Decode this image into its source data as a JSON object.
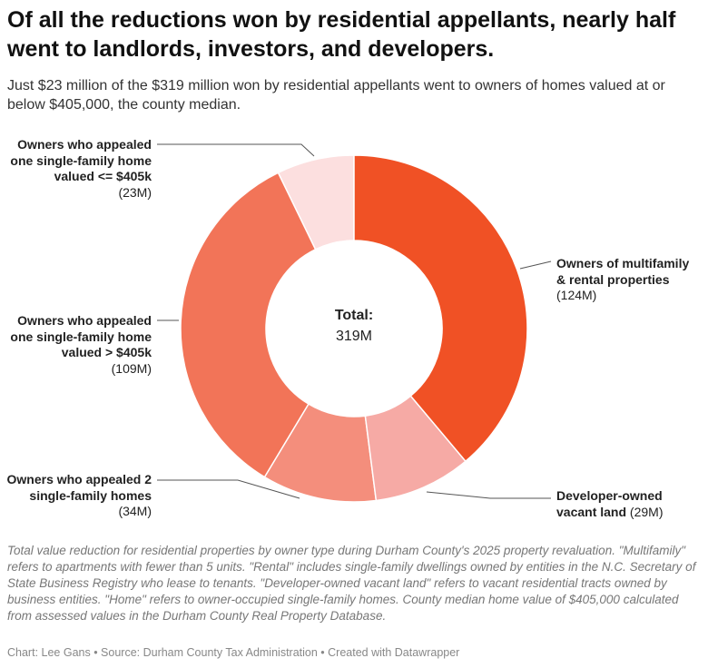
{
  "title": "Of all the reductions won by residential appellants, nearly half went to landlords, investors, and developers.",
  "subtitle": "Just $23 million of the $319 million won by residential appellants went to owners of homes valued at or below $405,000, the county median.",
  "notes": "Total value reduction for residential properties by owner type during Durham County's 2025 property revaluation. \"Multifamily\" refers to apartments with fewer than 5 units. \"Rental\" includes single-family dwellings owned by entities in the N.C. Secretary of State Business Registry who lease to tenants. \"Developer-owned vacant land\" refers to vacant residential tracts owned by business entities. \"Home\" refers to owner-occupied single-family homes. County median home value of $405,000 calculated from assessed values in the Durham County Real Property Database.",
  "footer": "Chart: Lee Gans • Source: Durham County Tax Administration • Created with Datawrapper",
  "chart_data": {
    "type": "donut",
    "categories": [
      "Owners of multifamily & rental properties",
      "Developer-owned vacant land",
      "Owners who appealed 2 single-family homes",
      "Owners who appealed one single-family home valued > $405k",
      "Owners who appealed one single-family home valued <= $405k"
    ],
    "values": [
      124,
      29,
      34,
      109,
      23
    ],
    "value_labels": [
      "(124M)",
      "(29M)",
      "(34M)",
      "(109M)",
      "(23M)"
    ],
    "colors": [
      "#f05125",
      "#f6aaa5",
      "#f48e7c",
      "#f27458",
      "#fcdfdf"
    ],
    "center_title": "Total:",
    "total": 319,
    "total_label": "319M"
  }
}
